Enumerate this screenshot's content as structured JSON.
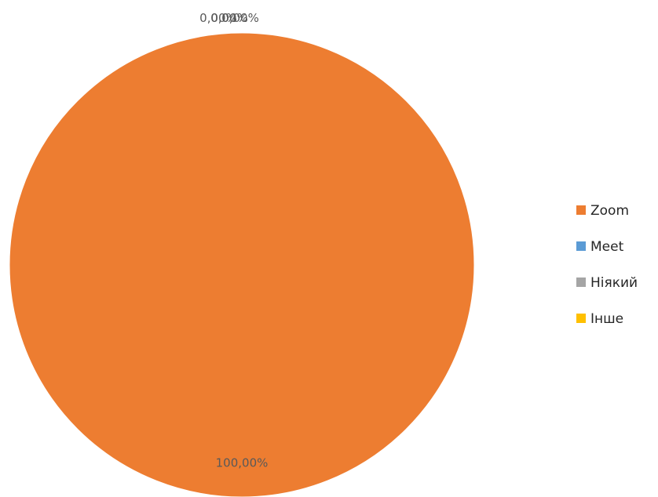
{
  "chart_data": {
    "type": "pie",
    "title": "",
    "categories": [
      "Zoom",
      "Meet",
      "Ніякий",
      "Інше"
    ],
    "values": [
      100,
      0,
      0,
      0
    ],
    "data_labels": [
      "100,00%",
      "0,00%",
      "0,00%",
      "0,00%"
    ],
    "colors": [
      "#ED7D31",
      "#5B9BD5",
      "#A5A5A5",
      "#FFC000"
    ],
    "legend_position": "right",
    "legend": [
      "Zoom",
      "Meet",
      "Ніякий",
      "Інше"
    ]
  }
}
